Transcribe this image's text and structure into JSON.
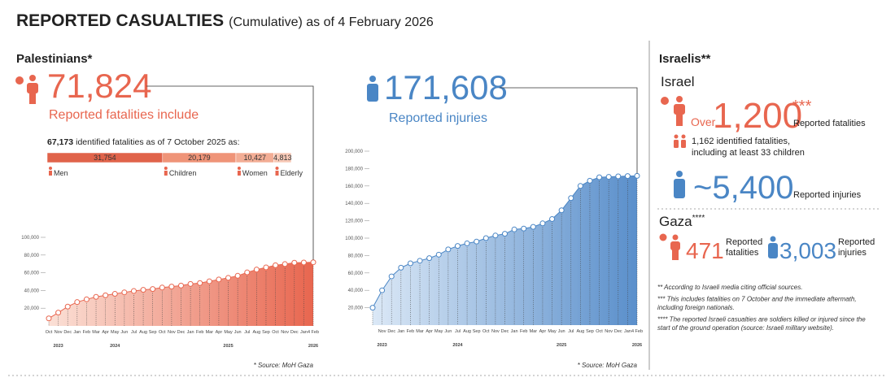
{
  "header": {
    "title": "REPORTED CASUALTIES",
    "subtitle": "(Cumulative) as of 4 February 2026"
  },
  "palestinians": {
    "heading": "Palestinians*",
    "fatalities": "71,824",
    "fatalities_label": "Reported fatalities include",
    "injuries": "171,608",
    "injuries_label": "Reported injuries"
  },
  "israelis": {
    "heading": "Israelis**",
    "israel": {
      "heading": "Israel",
      "over": "Over",
      "fatalities": "1,200",
      "fatalities_mark": "***",
      "fatalities_label": "Reported fatalities",
      "identified": [
        "1,162 identified fatalities,",
        "including at least 33 children"
      ],
      "injuries": "~5,400",
      "injuries_label": "Reported injuries"
    },
    "gaza": {
      "heading": "Gaza",
      "heading_mark": "****",
      "fatalities": "471",
      "fatalities_label": [
        "Reported",
        "fatalities"
      ],
      "injuries": "3,003",
      "injuries_label": [
        "Reported",
        "injuries"
      ]
    }
  },
  "footnotes": [
    [
      "** According to Israeli media citing official sources."
    ],
    [
      "*** This includes fatalities on 7 October and the immediate aftermath,",
      "including foreign nationals."
    ],
    [
      "**** The reported Israeli casualties are soldiers killed or injured since the",
      "start of the ground operation (source: Israeli military website)."
    ]
  ],
  "chart_data": [
    {
      "type": "area",
      "color": "#e8664f",
      "source": "* Source: MoH Gaza",
      "categories": [
        "Oct",
        "Nov",
        "Dec",
        "Jan",
        "Feb",
        "Mar",
        "Apr",
        "May",
        "Jun",
        "Jul",
        "Aug",
        "Sep",
        "Oct",
        "Nov",
        "Dec",
        "Jan",
        "Feb",
        "Mar",
        "Apr",
        "May",
        "Jun",
        "Jul",
        "Aug",
        "Sep",
        "Oct",
        "Nov",
        "Dec",
        "Jan",
        "4 Feb"
      ],
      "year_labels": [
        "2023",
        "2024",
        "2025",
        "2026"
      ],
      "values": [
        8500,
        15000,
        21800,
        26900,
        30000,
        32800,
        34500,
        36200,
        37900,
        39400,
        40700,
        41600,
        43300,
        44400,
        45500,
        47400,
        48400,
        50400,
        52400,
        54300,
        56600,
        60400,
        63600,
        66100,
        68500,
        69800,
        71300,
        71600,
        71824
      ],
      "ylim": [
        0,
        100000
      ],
      "yticks": [
        {
          "value": 20000,
          "label": "20,000"
        },
        {
          "value": 40000,
          "label": "40,000"
        },
        {
          "value": 60000,
          "label": "60,000"
        },
        {
          "value": 80000,
          "label": "80,000"
        },
        {
          "value": 100000,
          "label": "100,000"
        }
      ]
    },
    {
      "type": "area",
      "color": "#4a86c5",
      "source": "* Source: MoH Gaza",
      "categories": [
        null,
        "Nov",
        "Dec",
        "Jan",
        "Feb",
        "Mar",
        "Apr",
        "May",
        "Jun",
        "Jul",
        "Aug",
        "Sep",
        "Oct",
        "Nov",
        "Dec",
        "Jan",
        "Feb",
        "Mar",
        "Apr",
        "May",
        "Jun",
        "Jul",
        "Aug",
        "Sep",
        "Oct",
        "Nov",
        "Dec",
        "Jan",
        "4 Feb"
      ],
      "year_labels": [
        "2023",
        "2024",
        "2025",
        "2026"
      ],
      "values": [
        20000,
        40000,
        56000,
        66000,
        71000,
        74000,
        77000,
        81000,
        87000,
        91000,
        94000,
        96000,
        100000,
        103000,
        105000,
        110000,
        111000,
        113000,
        117000,
        122000,
        132000,
        146000,
        160000,
        166000,
        170000,
        170500,
        171000,
        171400,
        171608
      ],
      "ylim": [
        0,
        200000
      ],
      "yticks": [
        {
          "value": 20000,
          "label": "20,000"
        },
        {
          "value": 40000,
          "label": "40,000"
        },
        {
          "value": 60000,
          "label": "60,000"
        },
        {
          "value": 80000,
          "label": "80,000"
        },
        {
          "value": 100000,
          "label": "100,000"
        },
        {
          "value": 120000,
          "label": "120,000"
        },
        {
          "value": 140000,
          "label": "140,000"
        },
        {
          "value": 160000,
          "label": "160,000"
        },
        {
          "value": 180000,
          "label": "180,000"
        },
        {
          "value": 200000,
          "label": "200,000"
        }
      ]
    },
    {
      "type": "stacked_bar",
      "title_number": "67,173",
      "title": "identified fatalities as of 7 October 2025 as:",
      "series": [
        {
          "name": "Men",
          "color": "#e0634a",
          "values": [
            31754
          ],
          "value_labels": [
            "31,754"
          ]
        },
        {
          "name": "Children",
          "color": "#ef9478",
          "values": [
            20179
          ],
          "value_labels": [
            "20,179"
          ]
        },
        {
          "name": "Women",
          "color": "#f3ad95",
          "values": [
            10427
          ],
          "value_labels": [
            "10,427"
          ]
        },
        {
          "name": "Elderly",
          "color": "#f7c8b6",
          "values": [
            4813
          ],
          "value_labels": [
            "4,813"
          ]
        }
      ]
    }
  ]
}
